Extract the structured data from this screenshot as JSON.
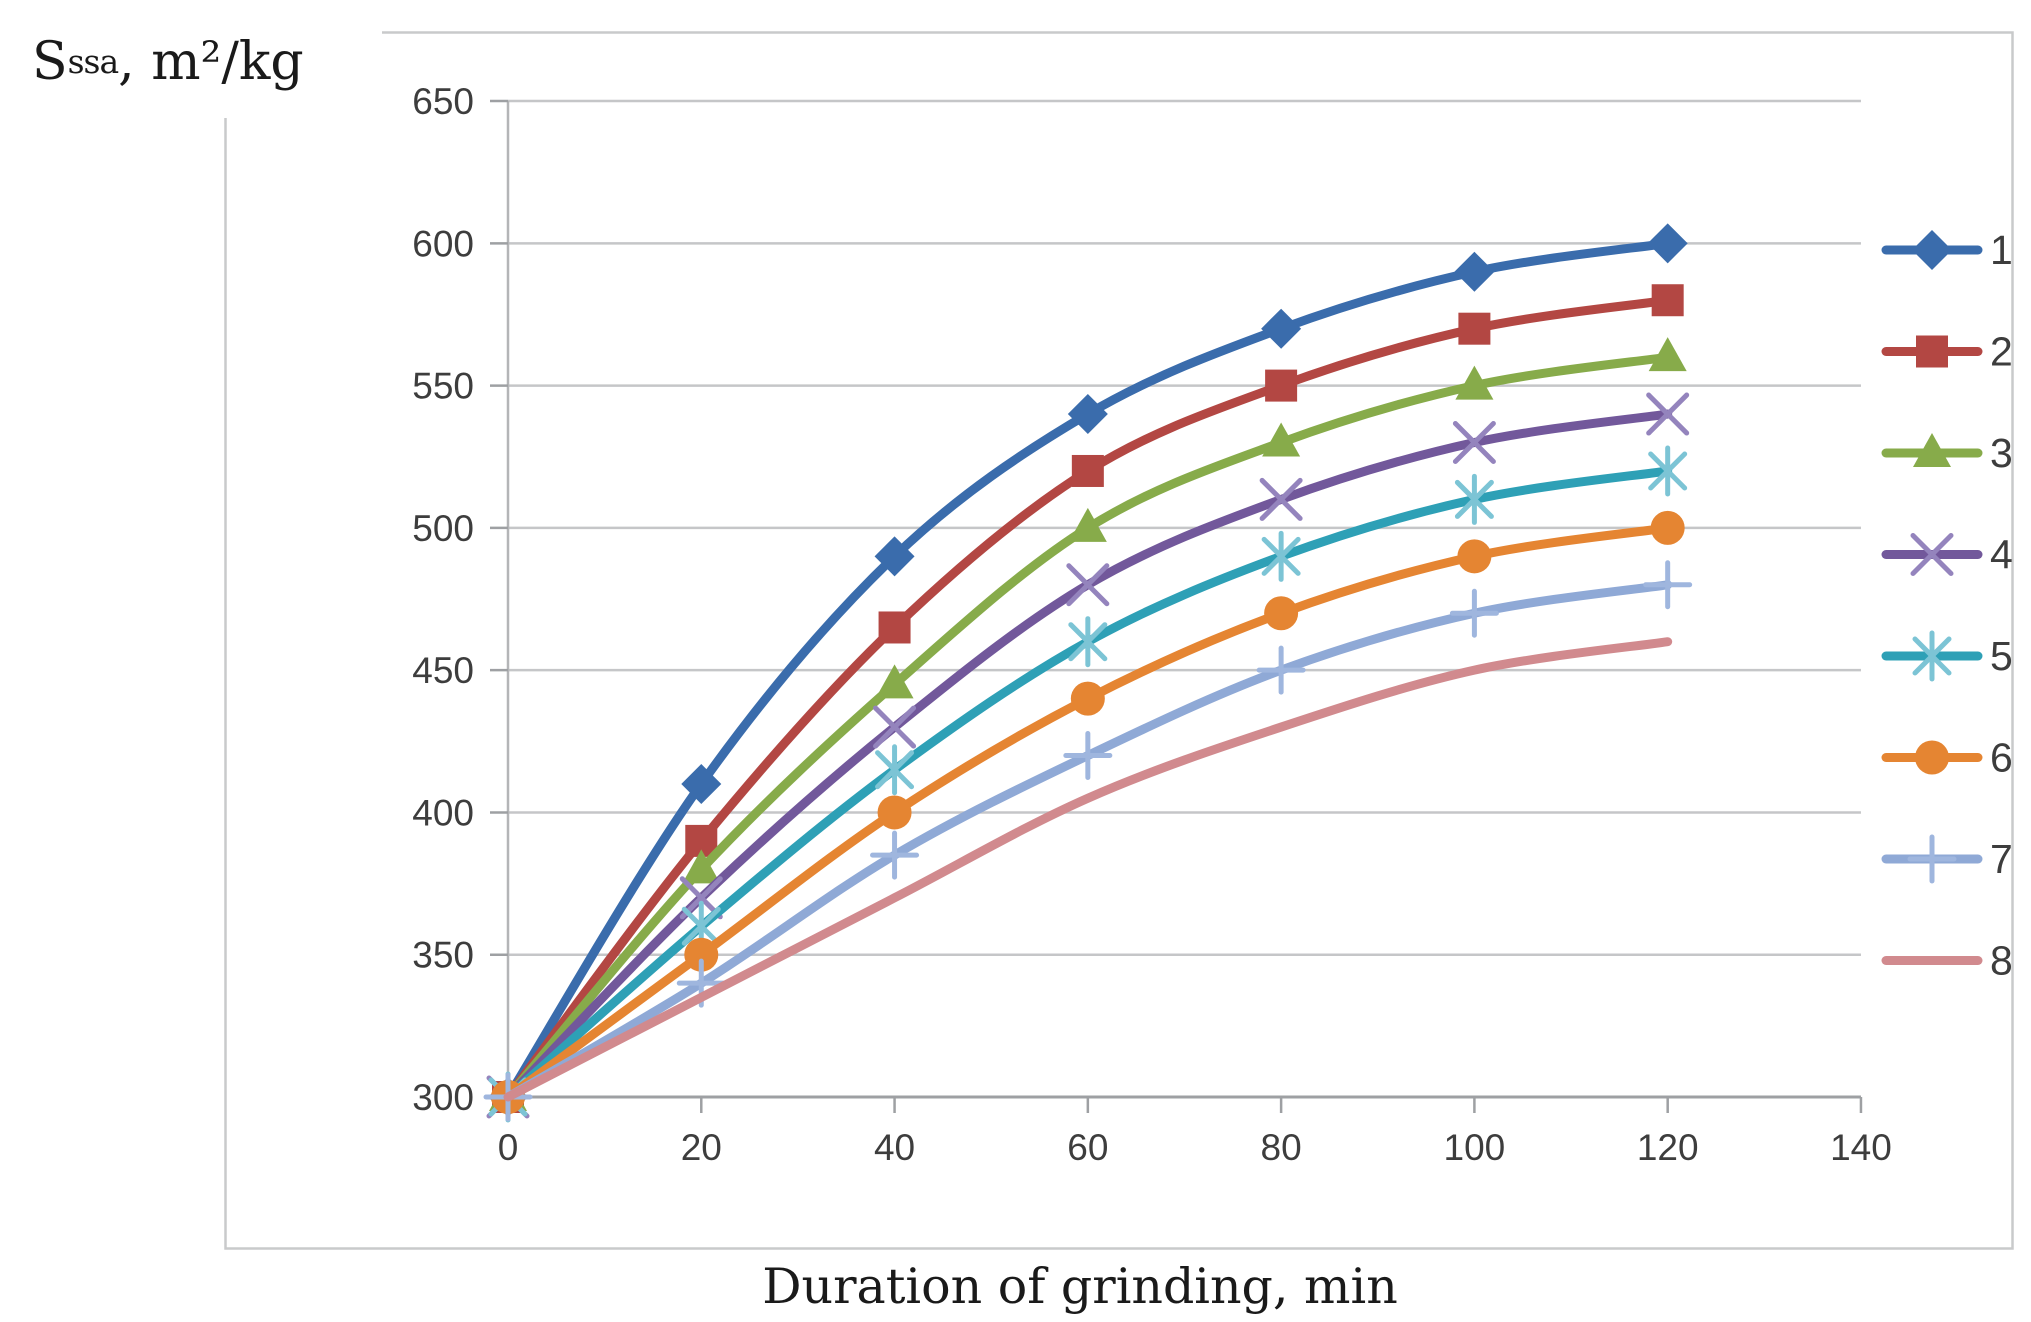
{
  "chart_data": {
    "type": "line",
    "title": "",
    "xlabel": "Duration of grinding, min",
    "ylabel": "Sssa, m²/kg",
    "ylabel_parts": {
      "base": "S",
      "sub": "ssa",
      "rest": ", m²/kg"
    },
    "x": [
      0,
      20,
      40,
      60,
      80,
      100,
      120
    ],
    "x_ticks": [
      0,
      20,
      40,
      60,
      80,
      100,
      120,
      140
    ],
    "xlim": [
      0,
      140
    ],
    "y_ticks": [
      300,
      350,
      400,
      450,
      500,
      550,
      600,
      650
    ],
    "ylim": [
      300,
      650
    ],
    "grid": "horizontal",
    "legend_position": "right",
    "series": [
      {
        "name": "1",
        "marker": "diamond",
        "color": "#3A6CAC",
        "marker_color": "#3A6CAC",
        "values": [
          300,
          410,
          490,
          540,
          570,
          590,
          600
        ]
      },
      {
        "name": "2",
        "marker": "square",
        "color": "#B34743",
        "marker_color": "#B34743",
        "values": [
          300,
          390,
          465,
          520,
          550,
          570,
          580
        ]
      },
      {
        "name": "3",
        "marker": "triangle",
        "color": "#87AB4A",
        "marker_color": "#87AB4A",
        "values": [
          300,
          380,
          445,
          500,
          530,
          550,
          560
        ]
      },
      {
        "name": "4",
        "marker": "x",
        "color": "#72589B",
        "marker_color": "#9484BD",
        "values": [
          300,
          370,
          430,
          480,
          510,
          530,
          540
        ]
      },
      {
        "name": "5",
        "marker": "asterisk",
        "color": "#2EA0B6",
        "marker_color": "#7CC4D5",
        "values": [
          300,
          360,
          415,
          460,
          490,
          510,
          520
        ]
      },
      {
        "name": "6",
        "marker": "circle",
        "color": "#E58532",
        "marker_color": "#E58532",
        "values": [
          300,
          350,
          400,
          440,
          470,
          490,
          500
        ]
      },
      {
        "name": "7",
        "marker": "plus",
        "color": "#8FA9D6",
        "marker_color": "#9FB6DE",
        "values": [
          300,
          340,
          385,
          420,
          450,
          470,
          480
        ]
      },
      {
        "name": "8",
        "marker": "none",
        "color": "#D18A8E",
        "marker_color": "#D18A8E",
        "values": [
          300,
          335,
          370,
          405,
          430,
          450,
          460
        ]
      }
    ],
    "colors": {
      "gridline": "#C5C6C8",
      "axis": "#9EA0A3",
      "y_axis_line": "#B4B5B7",
      "frame": "#C9CACB",
      "text": "#3D3D3D"
    }
  }
}
